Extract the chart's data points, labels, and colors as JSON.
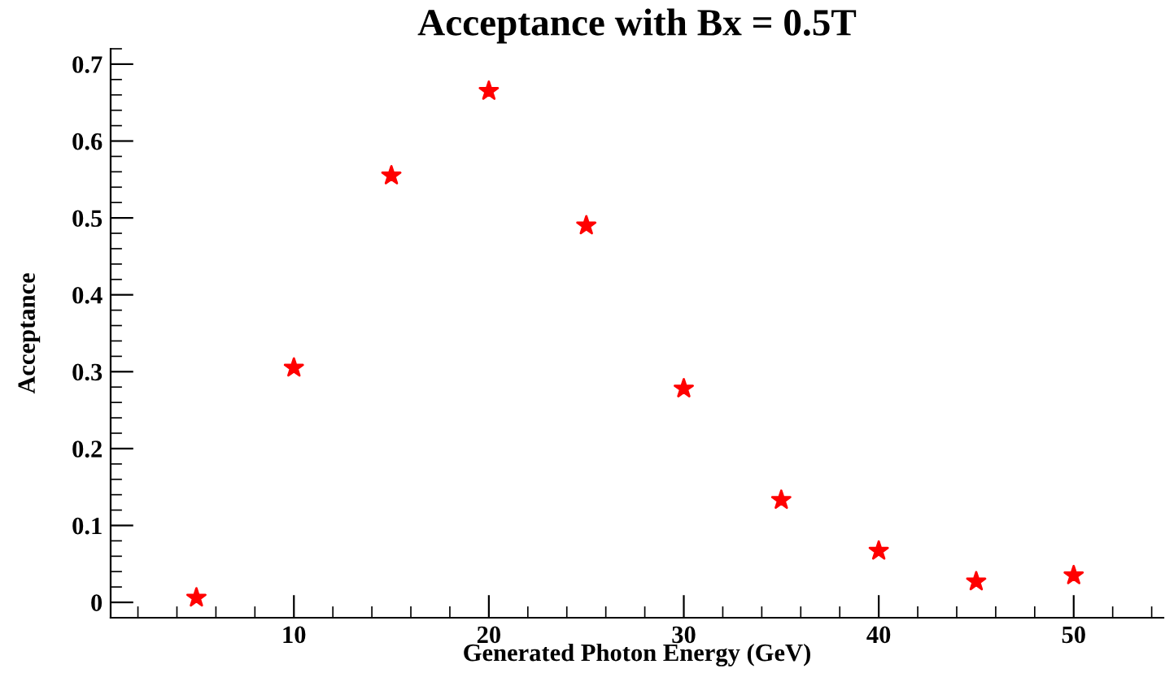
{
  "chart_data": {
    "type": "scatter",
    "title": "Acceptance with Bx = 0.5T",
    "xlabel": "Generated Photon Energy (GeV)",
    "ylabel": "Acceptance",
    "x": [
      5,
      10,
      15,
      20,
      25,
      30,
      35,
      40,
      45,
      50
    ],
    "series": [
      {
        "color": "#ff0000",
        "values": [
          0.006,
          0.305,
          0.555,
          0.665,
          0.49,
          0.278,
          0.133,
          0.067,
          0.027,
          0.035
        ]
      }
    ],
    "xlim": [
      0.6,
      54.6
    ],
    "ylim": [
      -0.02,
      0.72
    ],
    "xticks": [
      10,
      20,
      30,
      40,
      50
    ],
    "yticks": [
      0,
      0.1,
      0.2,
      0.3,
      0.4,
      0.5,
      0.6,
      0.7
    ],
    "marker": "star",
    "grid": false,
    "legend": false
  }
}
